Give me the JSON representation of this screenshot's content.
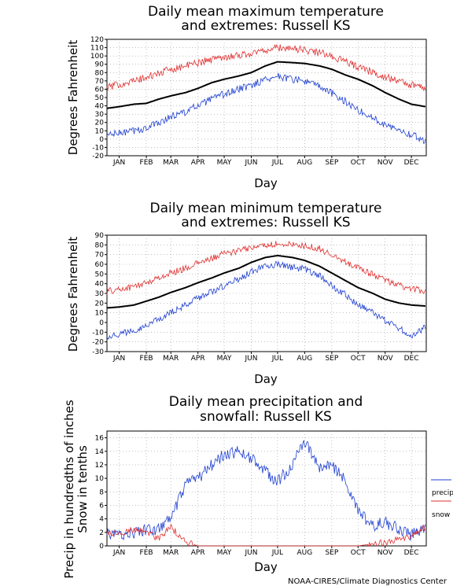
{
  "credit": "NOAA-CIRES/Climate Diagnostics Center",
  "chart_data": [
    {
      "type": "line",
      "title_lines": [
        "Daily mean maximum temperature",
        "and extremes: Russell KS"
      ],
      "xlabel": "Day",
      "ylabel": "Degrees Fahrenheit",
      "months": [
        "JAN",
        "FEB",
        "MAR",
        "APR",
        "MAY",
        "JUN",
        "JUL",
        "AUG",
        "SEP",
        "OCT",
        "NOV",
        "DEC"
      ],
      "ylim": [
        -20,
        120
      ],
      "yticks": [
        -20,
        -10,
        0,
        10,
        20,
        30,
        40,
        50,
        60,
        70,
        80,
        90,
        100,
        110,
        120
      ],
      "grid": true,
      "x_days": [
        1,
        15,
        32,
        46,
        60,
        74,
        91,
        105,
        121,
        135,
        152,
        166,
        182,
        196,
        213,
        227,
        244,
        258,
        274,
        288,
        305,
        319,
        335,
        349,
        365
      ],
      "series": [
        {
          "key": "mean",
          "color": "#000000",
          "values": [
            37,
            39,
            42,
            43,
            48,
            52,
            56,
            61,
            68,
            72,
            76,
            80,
            88,
            93,
            92,
            91,
            88,
            84,
            77,
            72,
            64,
            56,
            48,
            42,
            39
          ]
        },
        {
          "key": "high",
          "color": "#e03030",
          "values": [
            62,
            66,
            70,
            74,
            79,
            84,
            88,
            92,
            96,
            99,
            101,
            103,
            107,
            110,
            109,
            107,
            104,
            100,
            93,
            87,
            80,
            75,
            70,
            65,
            62
          ]
        },
        {
          "key": "low",
          "color": "#2040d0",
          "values": [
            5,
            7,
            10,
            13,
            20,
            27,
            33,
            40,
            48,
            54,
            60,
            65,
            72,
            76,
            72,
            70,
            63,
            55,
            45,
            35,
            25,
            18,
            12,
            5,
            -2
          ]
        }
      ]
    },
    {
      "type": "line",
      "title_lines": [
        "Daily mean minimum temperature",
        "and extremes: Russell KS"
      ],
      "xlabel": "Day",
      "ylabel": "Degrees Fahrenheit",
      "months": [
        "JAN",
        "FEB",
        "MAR",
        "APR",
        "MAY",
        "JUN",
        "JUL",
        "AUG",
        "SEP",
        "OCT",
        "NOV",
        "DEC"
      ],
      "ylim": [
        -30,
        90
      ],
      "yticks": [
        -30,
        -20,
        -10,
        0,
        10,
        20,
        30,
        40,
        50,
        60,
        70,
        80,
        90
      ],
      "grid": true,
      "x_days": [
        1,
        15,
        32,
        46,
        60,
        74,
        91,
        105,
        121,
        135,
        152,
        166,
        182,
        196,
        213,
        227,
        244,
        258,
        274,
        288,
        305,
        319,
        335,
        349,
        365
      ],
      "series": [
        {
          "key": "mean",
          "color": "#000000",
          "values": [
            15,
            16,
            18,
            22,
            26,
            31,
            36,
            41,
            46,
            51,
            56,
            62,
            67,
            69,
            67,
            64,
            58,
            51,
            43,
            36,
            30,
            24,
            20,
            18,
            17
          ]
        },
        {
          "key": "high",
          "color": "#e03030",
          "values": [
            32,
            34,
            37,
            41,
            46,
            51,
            56,
            61,
            66,
            71,
            74,
            77,
            80,
            81,
            80,
            79,
            76,
            70,
            63,
            56,
            50,
            44,
            38,
            34,
            33
          ]
        },
        {
          "key": "low",
          "color": "#2040d0",
          "values": [
            -15,
            -12,
            -8,
            -3,
            3,
            10,
            18,
            25,
            32,
            38,
            45,
            52,
            58,
            60,
            57,
            55,
            48,
            38,
            28,
            18,
            10,
            2,
            -6,
            -14,
            -5
          ]
        }
      ]
    },
    {
      "type": "line",
      "title_lines": [
        "Daily mean precipitation and",
        "snowfall: Russell KS"
      ],
      "xlabel": "Day",
      "ylabel_lines": [
        "Precip in hundredths of inches",
        "Snow in tenths"
      ],
      "months": [
        "JAN",
        "FEB",
        "MAR",
        "APR",
        "MAY",
        "JUN",
        "JUL",
        "AUG",
        "SEP",
        "OCT",
        "NOV",
        "DEC"
      ],
      "ylim": [
        0,
        17
      ],
      "yticks": [
        0,
        2,
        4,
        6,
        8,
        10,
        12,
        14,
        16
      ],
      "grid": true,
      "legend": [
        "precip",
        "snow"
      ],
      "legend_position": "right",
      "x_days": [
        1,
        15,
        32,
        46,
        60,
        74,
        91,
        105,
        121,
        135,
        152,
        166,
        182,
        196,
        213,
        227,
        244,
        258,
        274,
        288,
        305,
        319,
        335,
        349,
        365
      ],
      "series": [
        {
          "key": "precip",
          "name": "precip",
          "color": "#2040d0",
          "values": [
            1.8,
            1.6,
            2.0,
            2.3,
            2.5,
            4.0,
            9.0,
            10.0,
            12.0,
            13.5,
            14.0,
            13.0,
            11.0,
            9.5,
            12.0,
            15.5,
            11.5,
            12.0,
            9.5,
            5.0,
            3.0,
            3.5,
            2.5,
            1.5,
            3.0
          ]
        },
        {
          "key": "snow",
          "name": "snow",
          "color": "#e03030",
          "values": [
            2.0,
            1.7,
            2.5,
            2.2,
            1.0,
            2.8,
            0.6,
            0.0,
            0.0,
            0.0,
            0.0,
            0.0,
            0.0,
            0.0,
            0.0,
            0.0,
            0.0,
            0.0,
            0.0,
            0.0,
            0.3,
            0.5,
            1.0,
            1.4,
            2.8
          ]
        }
      ]
    }
  ]
}
